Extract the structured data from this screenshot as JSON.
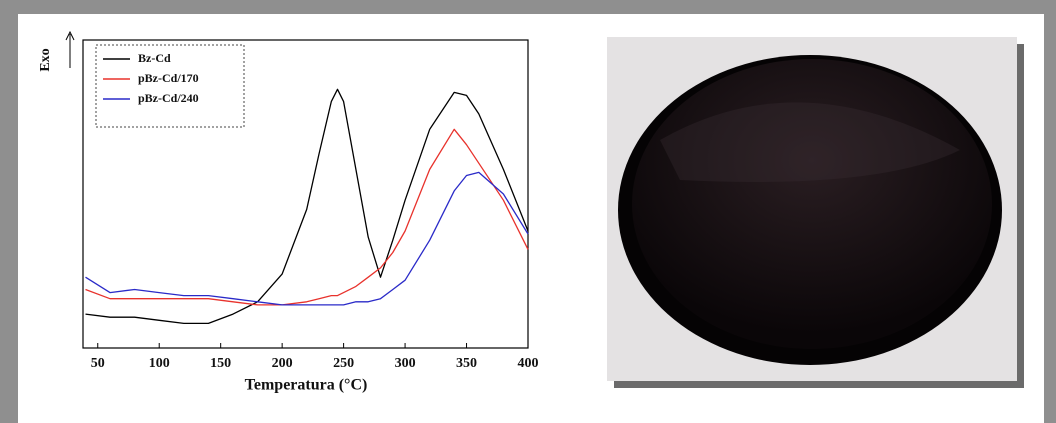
{
  "chart_data": {
    "type": "line",
    "x_label": "Temperatura (°C)",
    "y_label": "Exo",
    "x": [
      40,
      60,
      80,
      100,
      120,
      140,
      160,
      180,
      200,
      220,
      230,
      240,
      245,
      250,
      260,
      270,
      280,
      290,
      300,
      320,
      340,
      350,
      360,
      380,
      400
    ],
    "series": [
      {
        "name": "Bz-Cd",
        "color": "#000000",
        "values": [
          11,
          10,
          10,
          9,
          8,
          8,
          11,
          15,
          24,
          45,
          63,
          80,
          84,
          80,
          58,
          36,
          23,
          35,
          48,
          71,
          83,
          82,
          76,
          58,
          38
        ]
      },
      {
        "name": "pBz-Cd/170",
        "color": "#e8322c",
        "values": [
          19,
          16,
          16,
          16,
          16,
          16,
          15,
          14,
          14,
          15,
          16,
          17,
          17,
          18,
          20,
          23,
          26,
          31,
          38,
          58,
          71,
          66,
          60,
          48,
          32
        ]
      },
      {
        "name": "pBz-Cd/240",
        "color": "#2a2ac8",
        "values": [
          23,
          18,
          19,
          18,
          17,
          17,
          16,
          15,
          14,
          14,
          14,
          14,
          14,
          14,
          15,
          15,
          16,
          19,
          22,
          35,
          51,
          56,
          57,
          50,
          37
        ]
      }
    ],
    "xlim": [
      38,
      400
    ],
    "xticks": [
      50,
      100,
      150,
      200,
      250,
      300,
      350,
      400
    ],
    "ylim": [
      0,
      100
    ],
    "legend": "upper-left"
  }
}
